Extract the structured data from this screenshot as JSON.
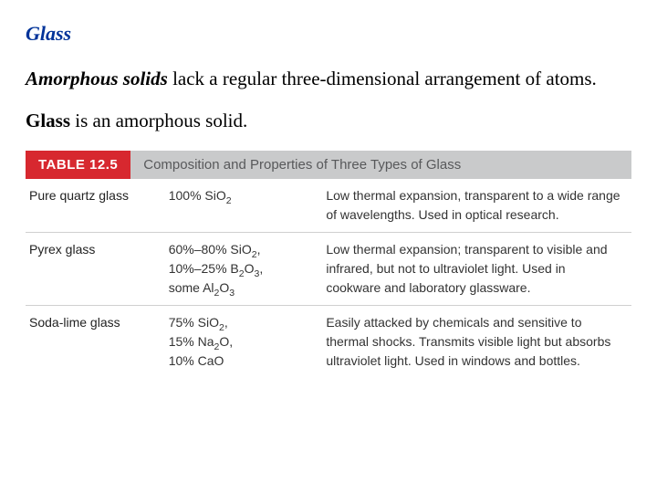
{
  "heading": "Glass",
  "intro": {
    "term": "Amorphous solids",
    "rest": " lack a regular three-dimensional arrangement of atoms."
  },
  "line2": {
    "term": "Glass",
    "rest": " is an amorphous solid."
  },
  "table": {
    "badge": "TABLE 12.5",
    "caption": "Composition and Properties of Three Types of Glass",
    "rows": [
      {
        "name": "Pure quartz glass",
        "composition_html": "100% SiO<sub>2</sub>",
        "properties": "Low thermal expansion, transparent to a wide range of wavelengths. Used in optical research."
      },
      {
        "name": "Pyrex glass",
        "composition_html": "60%–80% SiO<sub>2</sub>,<br>10%–25% B<sub>2</sub>O<sub>3</sub>,<br>some Al<sub>2</sub>O<sub>3</sub>",
        "properties": "Low thermal expansion; transparent to visible and infrared, but not to ultraviolet light. Used in cookware and laboratory glassware."
      },
      {
        "name": "Soda-lime glass",
        "composition_html": "75% SiO<sub>2</sub>,<br>15% Na<sub>2</sub>O,<br>10% CaO",
        "properties": "Easily attacked by chemicals and sensitive to thermal shocks. Transmits visible light but absorbs ultraviolet light. Used in windows and bottles."
      }
    ]
  }
}
